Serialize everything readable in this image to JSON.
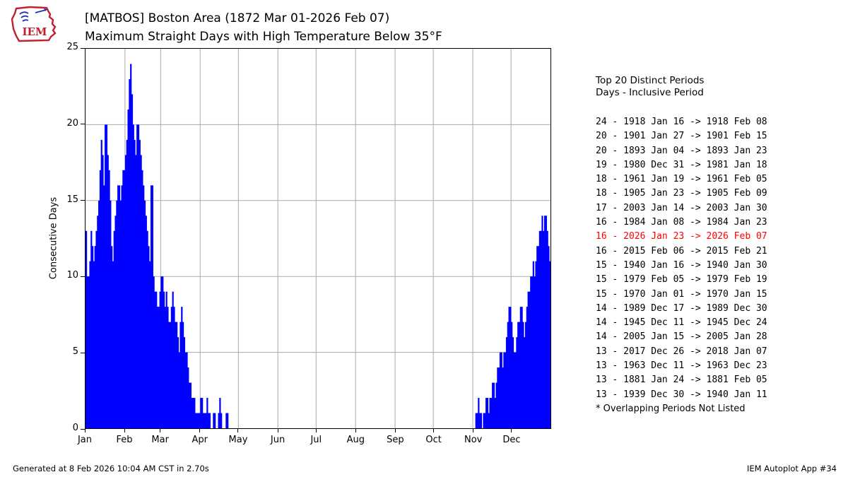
{
  "logo": {
    "text": "IEM"
  },
  "title": {
    "line1": "[MATBOS] Boston Area (1872 Mar 01-2026 Feb 07)",
    "line2": "Maximum Straight Days with High Temperature Below 35°F"
  },
  "chart_data": {
    "type": "bar",
    "title": "[MATBOS] Boston Area (1872 Mar 01-2026 Feb 07) Maximum Straight Days with High Temperature Below 35°F",
    "xlabel": "",
    "ylabel": "Consecutive Days",
    "ylim": [
      0,
      25
    ],
    "yticks": [
      0,
      5,
      10,
      15,
      20,
      25
    ],
    "x_months": [
      "Jan",
      "Feb",
      "Mar",
      "Apr",
      "May",
      "Jun",
      "Jul",
      "Aug",
      "Sep",
      "Oct",
      "Nov",
      "Dec"
    ],
    "month_start_days": [
      0,
      31,
      59,
      90,
      120,
      151,
      181,
      212,
      243,
      273,
      304,
      334
    ],
    "days_in_year": 365,
    "bar_color": "#0000ff",
    "grid_color": "#aaaaaa",
    "grid": true,
    "legend": "none",
    "segments": [
      {
        "start_day": 1,
        "values": [
          13,
          10,
          10,
          11,
          13,
          12,
          11,
          12,
          13,
          14,
          15,
          17,
          19,
          18,
          16,
          20,
          20,
          18,
          17,
          15,
          12,
          11,
          13,
          14,
          15,
          16,
          16,
          15,
          16,
          17,
          17,
          18,
          19,
          21,
          23,
          24,
          22,
          20,
          19,
          18,
          20,
          20,
          19,
          18,
          17,
          16,
          15,
          14,
          13,
          12,
          11,
          16,
          16,
          10,
          9,
          9,
          8,
          8,
          9,
          10,
          10,
          9,
          8,
          9,
          8,
          7,
          7,
          8,
          9,
          8,
          7,
          7,
          6,
          5,
          7,
          8,
          7,
          6,
          5,
          5,
          4,
          3,
          3,
          2,
          2,
          2,
          1,
          1,
          1,
          1,
          2,
          2,
          1,
          1,
          1,
          2,
          1,
          1,
          0,
          0,
          1,
          1,
          0,
          0,
          1,
          2,
          1,
          0,
          0,
          0,
          1,
          1,
          0,
          0,
          0,
          0,
          0,
          0,
          0,
          0
        ]
      },
      {
        "start_day": 307,
        "values": [
          1,
          1,
          2,
          1,
          1,
          0,
          1,
          1,
          2,
          2,
          1,
          2,
          2,
          3,
          3,
          2,
          3,
          4,
          4,
          5,
          5,
          4,
          5,
          5,
          6,
          7,
          8,
          8,
          7,
          6,
          5,
          5,
          6,
          7,
          7,
          8,
          8,
          7,
          6,
          7,
          8,
          9,
          9,
          10,
          10,
          11,
          10,
          11,
          12,
          12,
          13,
          13,
          14,
          13,
          14,
          14,
          13,
          12,
          11
        ]
      }
    ]
  },
  "side_panel": {
    "heading1": "Top 20 Distinct Periods",
    "heading2": "Days - Inclusive Period",
    "highlight_color": "#ff0000",
    "entries": [
      {
        "text": "24 - 1918 Jan 16 -> 1918 Feb 08",
        "highlight": false
      },
      {
        "text": "20 - 1901 Jan 27 -> 1901 Feb 15",
        "highlight": false
      },
      {
        "text": "20 - 1893 Jan 04 -> 1893 Jan 23",
        "highlight": false
      },
      {
        "text": "19 - 1980 Dec 31 -> 1981 Jan 18",
        "highlight": false
      },
      {
        "text": "18 - 1961 Jan 19 -> 1961 Feb 05",
        "highlight": false
      },
      {
        "text": "18 - 1905 Jan 23 -> 1905 Feb 09",
        "highlight": false
      },
      {
        "text": "17 - 2003 Jan 14 -> 2003 Jan 30",
        "highlight": false
      },
      {
        "text": "16 - 1984 Jan 08 -> 1984 Jan 23",
        "highlight": false
      },
      {
        "text": "16 - 2026 Jan 23 -> 2026 Feb 07",
        "highlight": true
      },
      {
        "text": "16 - 2015 Feb 06 -> 2015 Feb 21",
        "highlight": false
      },
      {
        "text": "15 - 1940 Jan 16 -> 1940 Jan 30",
        "highlight": false
      },
      {
        "text": "15 - 1979 Feb 05 -> 1979 Feb 19",
        "highlight": false
      },
      {
        "text": "15 - 1970 Jan 01 -> 1970 Jan 15",
        "highlight": false
      },
      {
        "text": "14 - 1989 Dec 17 -> 1989 Dec 30",
        "highlight": false
      },
      {
        "text": "14 - 1945 Dec 11 -> 1945 Dec 24",
        "highlight": false
      },
      {
        "text": "14 - 2005 Jan 15 -> 2005 Jan 28",
        "highlight": false
      },
      {
        "text": "13 - 2017 Dec 26 -> 2018 Jan 07",
        "highlight": false
      },
      {
        "text": "13 - 1963 Dec 11 -> 1963 Dec 23",
        "highlight": false
      },
      {
        "text": "13 - 1881 Jan 24 -> 1881 Feb 05",
        "highlight": false
      },
      {
        "text": "13 - 1939 Dec 30 -> 1940 Jan 11",
        "highlight": false
      }
    ],
    "footnote": "* Overlapping Periods Not Listed"
  },
  "footer": {
    "left": "Generated at 8 Feb 2026 10:04 AM CST in 2.70s",
    "right": "IEM Autoplot App #34"
  }
}
